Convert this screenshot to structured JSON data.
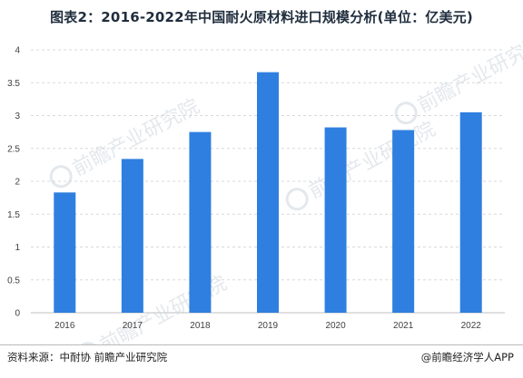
{
  "title": "图表2：2016-2022年中国耐火原材料进口规模分析(单位：亿美元)",
  "chart_data": {
    "type": "bar",
    "categories": [
      "2016",
      "2017",
      "2018",
      "2019",
      "2020",
      "2021",
      "2022"
    ],
    "values": [
      1.83,
      2.34,
      2.75,
      3.66,
      2.82,
      2.78,
      3.05
    ],
    "ylim": [
      0,
      4
    ],
    "yticks": [
      "0",
      "0.5",
      "1",
      "1.5",
      "2",
      "2.5",
      "3",
      "3.5",
      "4"
    ],
    "grid": "horizontal-dashed",
    "bar_color": "#2f7fe0"
  },
  "watermark": {
    "text": "前瞻产业研究院"
  },
  "footer": {
    "source": "资料来源：中耐协 前瞻产业研究院",
    "credit": "@前瞻经济学人APP"
  }
}
